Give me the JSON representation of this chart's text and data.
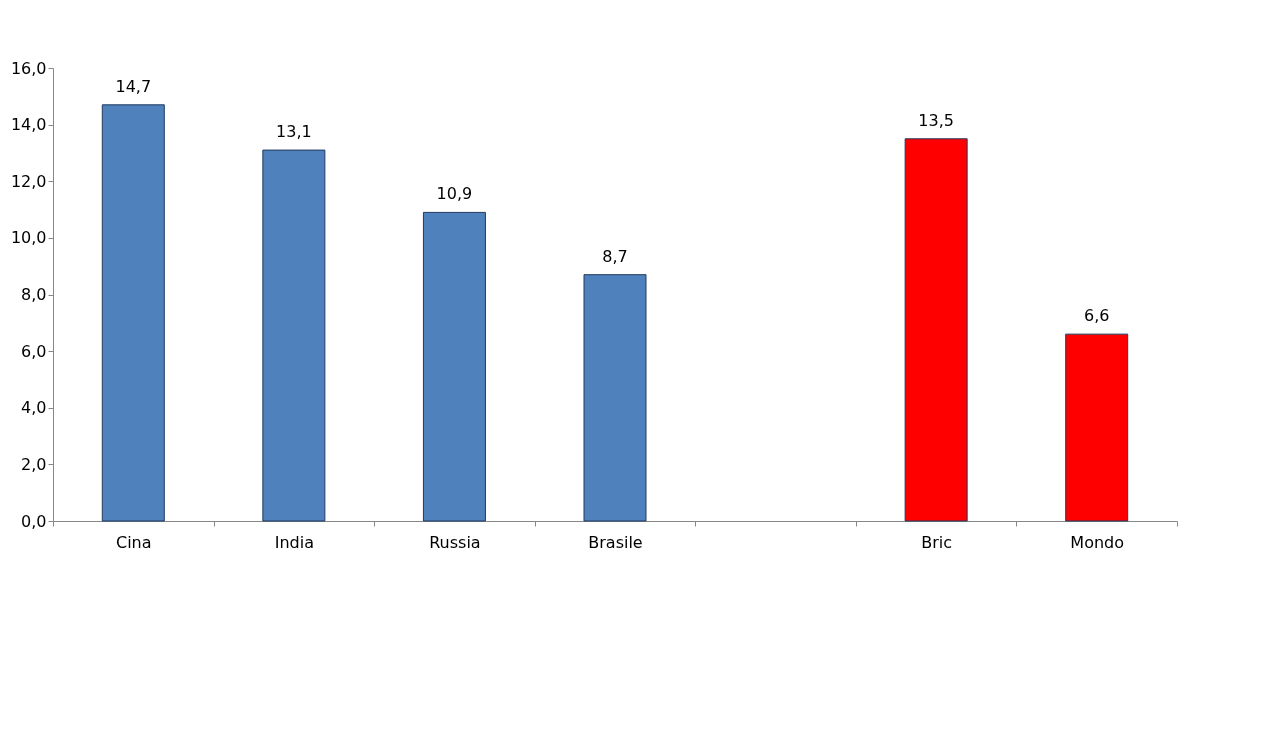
{
  "chart_data": {
    "type": "bar",
    "categories": [
      "Cina",
      "India",
      "Russia",
      "Brasile",
      null,
      "Bric",
      "Mondo"
    ],
    "values": [
      14.7,
      13.1,
      10.9,
      8.7,
      null,
      13.5,
      6.6
    ],
    "colors": [
      "#4f81bd",
      "#4f81bd",
      "#4f81bd",
      "#4f81bd",
      "#4f81bd",
      "#ff0000",
      "#ff0000"
    ],
    "value_labels": [
      "14,7",
      "13,1",
      "10,9",
      "8,7",
      null,
      "13,5",
      "6,6"
    ],
    "ylim": [
      0,
      16
    ],
    "yticks": [
      {
        "value": 0,
        "label": "0,0"
      },
      {
        "value": 2,
        "label": "2,0"
      },
      {
        "value": 4,
        "label": "4,0"
      },
      {
        "value": 6,
        "label": "6,0"
      },
      {
        "value": 8,
        "label": "8,0"
      },
      {
        "value": 10,
        "label": "10,0"
      },
      {
        "value": 12,
        "label": "12,0"
      },
      {
        "value": 14,
        "label": "14,0"
      },
      {
        "value": 16,
        "label": "16,0"
      }
    ],
    "grid": false
  }
}
